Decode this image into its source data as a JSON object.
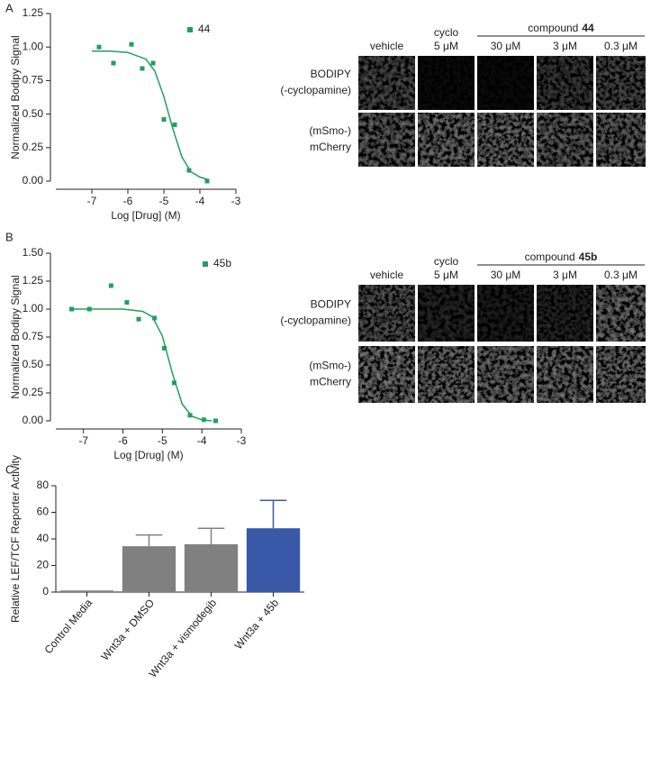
{
  "panel_labels": [
    "A",
    "B",
    "C"
  ],
  "chart_data": [
    {
      "type": "scatter",
      "xlabel": "Log [Drug] (M)",
      "ylabel": "Normalized Bodipy Signal",
      "xlim": [
        -8,
        -3
      ],
      "xticks": [
        -7,
        -6,
        -5,
        -4,
        -3
      ],
      "ylim": [
        0,
        1.25
      ],
      "yticks": [
        {
          "value": 0,
          "label": "0.00"
        },
        {
          "value": 0.25,
          "label": "0.25"
        },
        {
          "value": 0.5,
          "label": "0.50"
        },
        {
          "value": 0.75,
          "label": "0.75"
        },
        {
          "value": 1,
          "label": "1.00"
        },
        {
          "value": 1.25,
          "label": "1.25"
        }
      ],
      "series": [
        {
          "name": "44",
          "color": "#22a05a",
          "x": [
            -6.8,
            -6.4,
            -5.9,
            -5.6,
            -5.3,
            -5.0,
            -4.7,
            -4.3,
            -3.8
          ],
          "values": [
            1.0,
            0.88,
            1.02,
            0.84,
            0.88,
            0.46,
            0.42,
            0.08,
            0.0
          ]
        },
        {
          "color": "#22a05a",
          "line": true,
          "x": [
            -7,
            -6.5,
            -6,
            -5.5,
            -5.25,
            -5,
            -4.75,
            -4.5,
            -4.25,
            -4,
            -3.75
          ],
          "values": [
            0.97,
            0.97,
            0.96,
            0.91,
            0.82,
            0.63,
            0.39,
            0.18,
            0.07,
            0.03,
            0.01
          ]
        }
      ]
    },
    {
      "type": "scatter",
      "xlabel": "Log [Drug] (M)",
      "ylabel": "Normalized Bodipy Signal",
      "xlim": [
        -7.7,
        -3
      ],
      "xticks": [
        -7,
        -6,
        -5,
        -4,
        -3
      ],
      "ylim": [
        0,
        1.5
      ],
      "yticks": [
        {
          "value": 0,
          "label": "0.00"
        },
        {
          "value": 0.25,
          "label": "0.25"
        },
        {
          "value": 0.5,
          "label": "0.50"
        },
        {
          "value": 0.75,
          "label": "0.75"
        },
        {
          "value": 1,
          "label": "1.00"
        },
        {
          "value": 1.25,
          "label": "1.25"
        },
        {
          "value": 1.5,
          "label": "1.50"
        }
      ],
      "series": [
        {
          "name": "45b",
          "color": "#22a05a",
          "x": [
            -7.3,
            -6.85,
            -6.3,
            -5.9,
            -5.6,
            -5.2,
            -4.95,
            -4.7,
            -4.3,
            -3.95,
            -3.65
          ],
          "values": [
            1.0,
            1.0,
            1.21,
            1.06,
            0.91,
            0.92,
            0.65,
            0.34,
            0.05,
            0.01,
            0.0
          ]
        },
        {
          "color": "#22a05a",
          "line": true,
          "x": [
            -7.3,
            -6,
            -5.5,
            -5.25,
            -5,
            -4.75,
            -4.5,
            -4.25,
            -4,
            -3.75
          ],
          "values": [
            1.0,
            1.0,
            0.98,
            0.93,
            0.76,
            0.43,
            0.15,
            0.04,
            0.01,
            0.0
          ]
        }
      ]
    },
    {
      "type": "bar",
      "ylabel": "Relative LEF/TCF Reporter Activity",
      "categories": [
        "Control Media",
        "Wnt3a + DMSO",
        "Wnt3a + vismodegib",
        "Wnt3a + 45b"
      ],
      "values": [
        1.2,
        34.5,
        36,
        48
      ],
      "errors": [
        null,
        8.5,
        12,
        21
      ],
      "colors": [
        "#808080",
        "#808080",
        "#808080",
        "#3a58a8"
      ],
      "ylim": [
        0,
        80
      ],
      "yticks": [
        0,
        20,
        40,
        60,
        80
      ]
    }
  ],
  "micrographs": [
    {
      "column_labels": [
        [
          "vehicle"
        ],
        [
          "cyclo",
          "5 μM"
        ],
        [
          "30 μM"
        ],
        [
          "3 μM"
        ],
        [
          "0.3 μM"
        ]
      ],
      "group_label": "compound",
      "group_compound": "44",
      "row_labels": [
        [
          "BODIPY",
          "(-cyclopamine)"
        ],
        [
          "(mSmo-)",
          "mCherry"
        ]
      ]
    },
    {
      "column_labels": [
        [
          "vehicle"
        ],
        [
          "cyclo",
          "5 μM"
        ],
        [
          "30 μM"
        ],
        [
          "3 μM"
        ],
        [
          "0.3 μM"
        ]
      ],
      "group_label": "compound",
      "group_compound": "45b",
      "row_labels": [
        [
          "BODIPY",
          "(-cyclopamine)"
        ],
        [
          "(mSmo-)",
          "mCherry"
        ]
      ]
    }
  ]
}
